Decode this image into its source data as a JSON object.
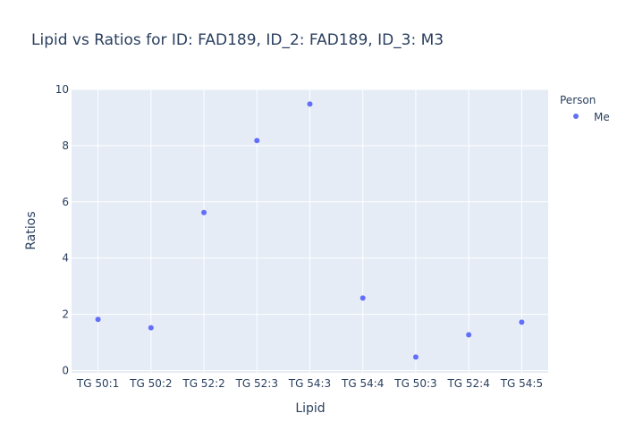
{
  "chart_data": {
    "type": "scatter",
    "title": "Lipid vs Ratios for ID: FAD189, ID_2: FAD189, ID_3: M3",
    "xlabel": "Lipid",
    "ylabel": "Ratios",
    "categories": [
      "TG 50:1",
      "TG 50:2",
      "TG 52:2",
      "TG 52:3",
      "TG 54:3",
      "TG 54:4",
      "TG 50:3",
      "TG 52:4",
      "TG 54:5"
    ],
    "ylim": [
      -0.08,
      10.0
    ],
    "yticks": [
      0,
      2,
      4,
      6,
      8,
      10
    ],
    "grid": true,
    "legend_position": "right",
    "legend_title": "Person",
    "series": [
      {
        "name": "Me",
        "values": [
          1.82,
          1.52,
          5.62,
          8.18,
          9.48,
          2.58,
          0.48,
          1.27,
          1.72
        ]
      }
    ],
    "colors": {
      "marker": "#636efa",
      "plot_bg": "#e5ecf6",
      "grid": "#ffffff",
      "text": "#2a3f5f"
    }
  }
}
